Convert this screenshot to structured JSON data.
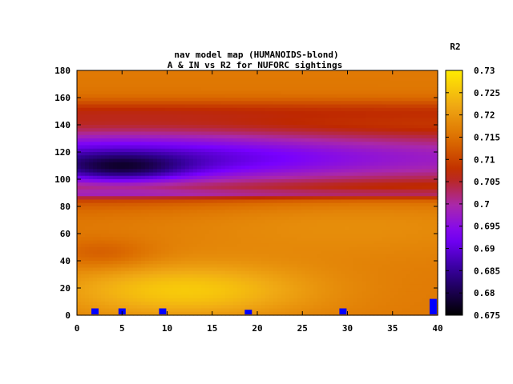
{
  "chart_data": {
    "type": "heatmap",
    "title_line1": "nav model map (HUMANOIDS-blond)",
    "title_line2": "A & IN vs R2 for NUFORC sightings",
    "xlabel": "",
    "ylabel": "",
    "xlim": [
      0,
      40
    ],
    "ylim": [
      0,
      180
    ],
    "x_ticks": [
      0,
      5,
      10,
      15,
      20,
      25,
      30,
      35,
      40
    ],
    "y_ticks": [
      0,
      20,
      40,
      60,
      80,
      100,
      120,
      140,
      160,
      180
    ],
    "colorbar": {
      "label": "R2",
      "range": [
        0.675,
        0.73
      ],
      "ticks": [
        "0.73",
        "0.725",
        "0.72",
        "0.715",
        "0.71",
        "0.705",
        "0.7",
        "0.695",
        "0.69",
        "0.685",
        "0.68",
        "0.675"
      ],
      "palette": "black-blue-purple-red-orange-yellow"
    },
    "surface_features": [
      {
        "description_note": "global minimum",
        "x": 5,
        "y": 108,
        "value": 0.676
      },
      {
        "description_note": "low trough band",
        "y_range": [
          95,
          135
        ],
        "value_range": [
          0.68,
          0.695
        ]
      },
      {
        "description_note": "ridge line",
        "y": 88,
        "value": 0.706
      },
      {
        "description_note": "local maximum",
        "x": 12,
        "y": 20,
        "value": 0.726
      },
      {
        "description_note": "upper ridge",
        "y": 150,
        "value": 0.708
      }
    ],
    "markers": [
      {
        "x": 2,
        "y": 5
      },
      {
        "x": 5,
        "y": 5
      },
      {
        "x": 9.5,
        "y": 5
      },
      {
        "x": 19,
        "y": 4
      },
      {
        "x": 29.5,
        "y": 5
      },
      {
        "x": 39.5,
        "y": 12
      }
    ],
    "grid": false,
    "colors": {
      "marker": "#0000ff"
    }
  }
}
